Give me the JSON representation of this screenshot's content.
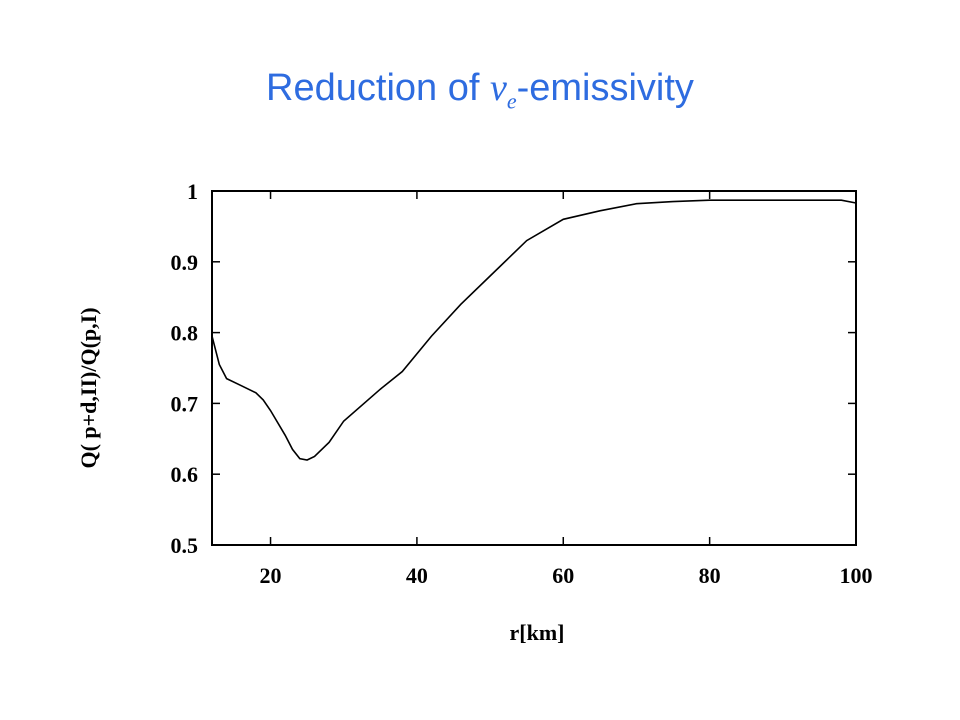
{
  "slide": {
    "title_before": "Reduction of ",
    "title_symbol": "ν",
    "title_subscript": "e",
    "title_after": "-emissivity",
    "title_color": "#2E6CE0"
  },
  "chart_data": {
    "type": "line",
    "title": "",
    "xlabel": "r[km]",
    "ylabel": "Q( p+d,II)/Q(p,I)",
    "xlim": [
      12,
      100
    ],
    "ylim": [
      0.5,
      1.0
    ],
    "x_ticks": [
      20,
      40,
      60,
      80,
      100
    ],
    "y_ticks": [
      0.5,
      0.6,
      0.7,
      0.8,
      0.9,
      1.0
    ],
    "x_tick_labels": [
      "20",
      "40",
      "60",
      "80",
      "100"
    ],
    "y_tick_labels": [
      "0.5",
      "0.6",
      "0.7",
      "0.8",
      "0.9",
      "1"
    ],
    "grid": false,
    "line_color": "#000000",
    "series": [
      {
        "x": [
          12,
          13,
          14,
          16,
          18,
          19,
          20,
          22,
          23,
          24,
          25,
          26,
          28,
          30,
          35,
          38,
          42,
          46,
          50,
          55,
          60,
          65,
          70,
          75,
          80,
          85,
          90,
          95,
          98,
          100
        ],
        "y": [
          0.795,
          0.755,
          0.735,
          0.725,
          0.715,
          0.705,
          0.69,
          0.655,
          0.635,
          0.622,
          0.62,
          0.625,
          0.645,
          0.675,
          0.72,
          0.745,
          0.795,
          0.84,
          0.88,
          0.93,
          0.96,
          0.972,
          0.982,
          0.985,
          0.987,
          0.987,
          0.987,
          0.987,
          0.987,
          0.983
        ]
      }
    ]
  }
}
